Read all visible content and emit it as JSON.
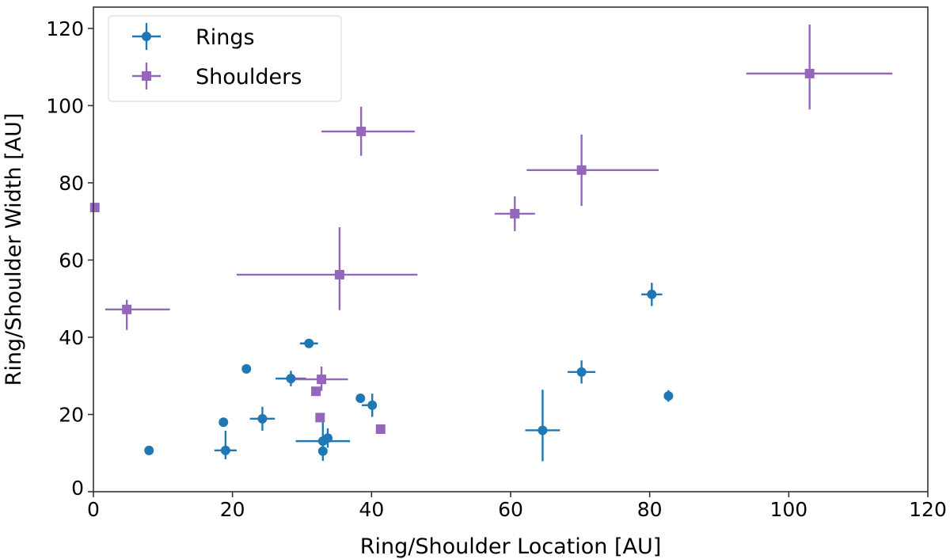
{
  "chart_data": {
    "type": "scatter",
    "xlabel": "Ring/Shoulder Location [AU]",
    "ylabel": "Ring/Shoulder Width [AU]",
    "xlim": [
      0,
      120
    ],
    "ylim": [
      0,
      125.5
    ],
    "xticks": [
      0,
      20,
      40,
      60,
      80,
      100,
      120
    ],
    "yticks": [
      0,
      20,
      40,
      60,
      80,
      100,
      120
    ],
    "grid": false,
    "legend_position": "top-left",
    "series": [
      {
        "name": "Rings",
        "marker": "circle",
        "color": "#1f77b4",
        "points": [
          {
            "x": 8.0,
            "y": 10.7
          },
          {
            "x": 18.7,
            "y": 18.0
          },
          {
            "x": 19.0,
            "y": 10.7,
            "xerr": [
              1.6,
              1.6
            ],
            "yerr": [
              2.3,
              5.1
            ]
          },
          {
            "x": 22.0,
            "y": 31.8
          },
          {
            "x": 24.3,
            "y": 18.9,
            "xerr": [
              1.8,
              1.8
            ],
            "yerr": [
              3.1,
              3.1
            ]
          },
          {
            "x": 28.4,
            "y": 29.3,
            "xerr": [
              2.2,
              2.2
            ],
            "yerr": [
              2.0,
              2.0
            ]
          },
          {
            "x": 31.0,
            "y": 38.4,
            "xerr": [
              1.3,
              1.3
            ]
          },
          {
            "x": 33.0,
            "y": 13.1,
            "xerr": [
              3.9,
              3.9
            ],
            "yerr": [
              1.0,
              5.3
            ]
          },
          {
            "x": 33.7,
            "y": 13.9,
            "yerr": [
              2.5,
              2.5
            ]
          },
          {
            "x": 33.0,
            "y": 10.5,
            "yerr": [
              2.5,
              2.5
            ]
          },
          {
            "x": 38.4,
            "y": 24.2
          },
          {
            "x": 40.1,
            "y": 22.4,
            "xerr": [
              1.5,
              0.3
            ],
            "yerr": [
              3.0,
              3.0
            ]
          },
          {
            "x": 64.6,
            "y": 15.9,
            "xerr": [
              2.5,
              2.5
            ],
            "yerr": [
              8.0,
              10.5
            ]
          },
          {
            "x": 70.2,
            "y": 31.0,
            "xerr": [
              2.0,
              2.0
            ],
            "yerr": [
              3.0,
              3.0
            ]
          },
          {
            "x": 80.3,
            "y": 51.1,
            "xerr": [
              1.5,
              1.5
            ],
            "yerr": [
              3.0,
              3.0
            ]
          },
          {
            "x": 82.7,
            "y": 24.8,
            "yerr": [
              1.5,
              1.5
            ]
          }
        ]
      },
      {
        "name": "Shoulders",
        "marker": "square",
        "color": "#9467bd",
        "points": [
          {
            "x": 0.2,
            "y": 73.6
          },
          {
            "x": 4.8,
            "y": 47.2,
            "xerr": [
              3.1,
              6.2
            ],
            "yerr": [
              5.3,
              2.5
            ]
          },
          {
            "x": 35.4,
            "y": 56.2,
            "xerr": [
              14.8,
              11.2
            ],
            "yerr": [
              9.2,
              12.3
            ]
          },
          {
            "x": 38.5,
            "y": 93.3,
            "xerr": [
              5.7,
              7.7
            ],
            "yerr": [
              6.3,
              6.4
            ]
          },
          {
            "x": 60.6,
            "y": 72.0,
            "xerr": [
              2.9,
              2.9
            ],
            "yerr": [
              4.5,
              4.5
            ]
          },
          {
            "x": 70.2,
            "y": 83.3,
            "xerr": [
              7.9,
              11.1
            ],
            "yerr": [
              9.3,
              9.2
            ]
          },
          {
            "x": 103.0,
            "y": 108.3,
            "xerr": [
              9.1,
              11.9
            ],
            "yerr": [
              9.3,
              12.7
            ]
          },
          {
            "x": 32.8,
            "y": 29.1,
            "xerr": [
              3.8,
              3.8
            ],
            "yerr": [
              3.0,
              3.3
            ]
          },
          {
            "x": 32.0,
            "y": 26.0
          },
          {
            "x": 32.6,
            "y": 19.2
          },
          {
            "x": 41.3,
            "y": 16.2
          }
        ]
      }
    ]
  }
}
